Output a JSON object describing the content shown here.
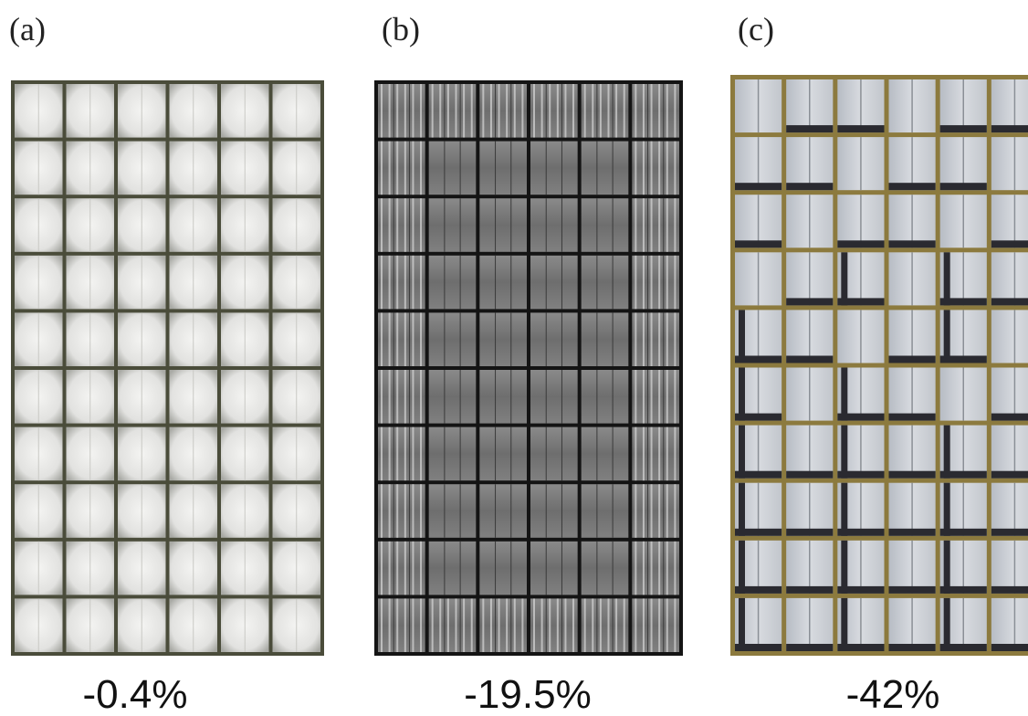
{
  "panels": [
    {
      "label": "(a)",
      "caption": "-0.4%"
    },
    {
      "label": "(b)",
      "caption": "-19.5%"
    },
    {
      "label": "(c)",
      "caption": "-42%"
    }
  ]
}
